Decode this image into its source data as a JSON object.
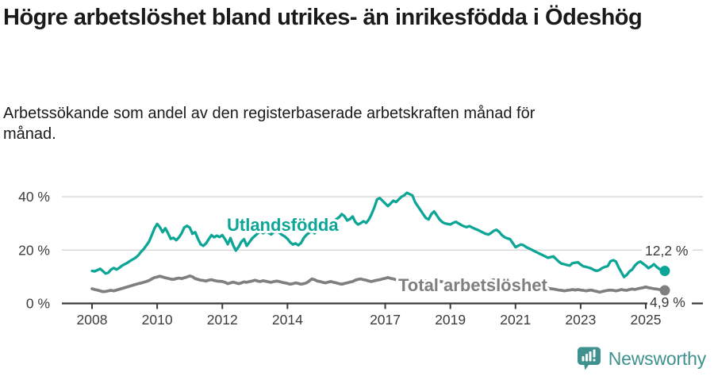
{
  "title": "Högre arbetslöshet bland utrikes- än inrikesfödda i Ödeshög",
  "subtitle": "Arbetssökande som andel av den registerbaserade arbetskraften månad för månad.",
  "branding": {
    "label": "Newsworthy",
    "icon": "newsworthy-bar-chart-pin-icon",
    "color": "#3e918e"
  },
  "chart_data": {
    "type": "line",
    "title": "Högre arbetslöshet bland utrikes- än inrikesfödda i Ödeshög",
    "subtitle": "Arbetssökande som andel av den registerbaserade arbetskraften månad för månad.",
    "unit": "%",
    "x_unit": "month",
    "x_range": "2008-01 to 2025-08",
    "x_tick_labels": [
      "2008",
      "2010",
      "2012",
      "2014",
      "2017",
      "2019",
      "2021",
      "2023",
      "2025"
    ],
    "x_tick_values": [
      2008,
      2010,
      2012,
      2014,
      2017,
      2019,
      2021,
      2023,
      2025
    ],
    "y_tick_labels": [
      "0 %",
      "20 %",
      "40 %"
    ],
    "y_tick_values": [
      0,
      20,
      40
    ],
    "ylim": [
      0,
      44
    ],
    "grid": "horizontal-light",
    "legend_position": "inline-series-labels",
    "series": [
      {
        "name": "Utlandsfödda",
        "color": "#0da596",
        "end_label": "12,2 %",
        "end_value": 12.2,
        "values": [
          12.2,
          12.0,
          12.5,
          13.0,
          12.1,
          11.2,
          11.5,
          12.7,
          13.3,
          12.7,
          13.3,
          14.1,
          14.7,
          15.2,
          15.9,
          16.5,
          17.1,
          18.0,
          19.3,
          20.3,
          21.7,
          23.2,
          25.6,
          28.1,
          29.8,
          28.6,
          26.7,
          28.2,
          26.3,
          24.2,
          24.6,
          23.7,
          24.7,
          26.3,
          28.5,
          29.1,
          28.4,
          26.1,
          26.7,
          24.3,
          22.2,
          21.6,
          22.5,
          24.1,
          25.6,
          24.8,
          25.4,
          24.9,
          25.6,
          24.1,
          22.2,
          24.5,
          21.8,
          19.8,
          21.2,
          23.1,
          24.1,
          21.6,
          23.0,
          24.4,
          25.3,
          26.2,
          27.1,
          26.3,
          27.2,
          26.5,
          25.9,
          26.7,
          27.3,
          26.5,
          25.7,
          25.1,
          24.2,
          22.9,
          22.1,
          22.5,
          21.8,
          22.7,
          24.5,
          25.7,
          26.5,
          27.1,
          26.3,
          27.5,
          27.9,
          28.4,
          29.0,
          29.6,
          30.2,
          30.9,
          31.6,
          32.3,
          33.5,
          32.7,
          31.1,
          31.6,
          32.6,
          30.5,
          29.6,
          30.1,
          30.8,
          30.2,
          31.5,
          33.5,
          36.0,
          39.0,
          39.5,
          38.5,
          37.5,
          36.5,
          37.5,
          38.5,
          38.0,
          39.0,
          40.0,
          40.5,
          41.5,
          41.0,
          40.5,
          38.0,
          36.5,
          35.0,
          33.5,
          32.0,
          31.5,
          33.5,
          34.5,
          33.0,
          31.5,
          30.5,
          30.0,
          29.8,
          29.6,
          30.2,
          30.6,
          30.0,
          29.4,
          28.9,
          28.6,
          29.0,
          28.5,
          28.0,
          27.6,
          27.1,
          26.6,
          26.1,
          25.8,
          26.4,
          27.2,
          27.6,
          26.8,
          25.6,
          24.8,
          24.4,
          24.1,
          22.6,
          21.1,
          21.6,
          22.1,
          21.8,
          21.1,
          20.6,
          20.1,
          19.6,
          19.1,
          18.6,
          18.1,
          17.6,
          17.1,
          17.4,
          17.6,
          16.6,
          15.6,
          14.9,
          14.7,
          14.4,
          14.2,
          15.1,
          15.3,
          15.4,
          14.6,
          13.9,
          13.7,
          13.4,
          13.1,
          12.5,
          12.2,
          12.6,
          13.3,
          13.7,
          14.0,
          15.8,
          16.2,
          15.7,
          13.5,
          11.7,
          9.9,
          10.7,
          12.0,
          12.7,
          14.2,
          15.2,
          15.7,
          14.9,
          14.2,
          13.2,
          13.9,
          14.7,
          13.7,
          12.9,
          12.5,
          12.2
        ]
      },
      {
        "name": "Total arbetslöshet",
        "color": "#7f7f7f",
        "end_label": "4,9 %",
        "end_value": 4.9,
        "values": [
          5.5,
          5.2,
          5.0,
          4.7,
          4.4,
          4.5,
          4.7,
          4.9,
          4.7,
          5.0,
          5.3,
          5.6,
          5.9,
          6.2,
          6.5,
          6.8,
          7.1,
          7.4,
          7.6,
          7.9,
          8.2,
          8.6,
          9.2,
          9.7,
          9.9,
          10.2,
          9.9,
          9.6,
          9.4,
          9.1,
          9.0,
          9.3,
          9.5,
          9.3,
          9.6,
          9.9,
          10.3,
          10.0,
          9.3,
          9.0,
          8.7,
          8.6,
          8.4,
          8.7,
          8.9,
          8.6,
          8.4,
          8.3,
          8.2,
          7.9,
          7.4,
          7.7,
          8.0,
          7.7,
          7.4,
          7.7,
          8.1,
          7.9,
          8.2,
          8.4,
          8.7,
          8.4,
          8.2,
          8.5,
          8.3,
          8.1,
          7.9,
          8.2,
          8.4,
          8.2,
          7.9,
          7.7,
          7.5,
          7.2,
          7.4,
          7.7,
          7.5,
          7.2,
          7.4,
          7.7,
          8.4,
          9.2,
          8.9,
          8.4,
          8.2,
          7.9,
          7.7,
          8.0,
          8.2,
          7.9,
          7.7,
          7.4,
          7.2,
          7.5,
          7.7,
          8.0,
          8.2,
          8.7,
          9.0,
          9.2,
          8.9,
          8.7,
          8.4,
          8.2,
          8.5,
          8.7,
          8.9,
          9.2,
          9.4,
          9.7,
          9.4,
          9.2,
          8.9,
          8.7,
          8.9,
          9.1,
          8.9,
          8.7,
          8.5,
          8.4,
          8.2,
          8.4,
          8.6,
          8.4,
          8.2,
          8.0,
          7.9,
          8.1,
          8.3,
          8.1,
          7.9,
          7.7,
          7.9,
          8.1,
          7.9,
          7.7,
          7.5,
          7.7,
          7.9,
          7.7,
          7.5,
          7.4,
          7.2,
          7.4,
          7.7,
          7.9,
          8.2,
          8.6,
          8.9,
          8.7,
          8.4,
          8.2,
          8.0,
          7.9,
          7.7,
          7.5,
          7.4,
          7.2,
          7.0,
          6.9,
          6.7,
          6.5,
          6.4,
          6.2,
          6.0,
          5.9,
          5.7,
          5.9,
          5.7,
          5.5,
          5.4,
          5.2,
          5.0,
          4.9,
          4.7,
          4.9,
          5.0,
          5.2,
          5.0,
          5.2,
          5.0,
          4.9,
          4.7,
          4.9,
          5.0,
          4.7,
          4.5,
          4.2,
          4.5,
          4.7,
          4.9,
          5.0,
          4.9,
          4.7,
          4.9,
          5.2,
          5.0,
          4.9,
          5.2,
          5.4,
          5.2,
          5.5,
          5.7,
          5.9,
          6.2,
          5.9,
          5.7,
          5.5,
          5.4,
          5.2,
          5.0,
          4.9
        ]
      }
    ]
  }
}
